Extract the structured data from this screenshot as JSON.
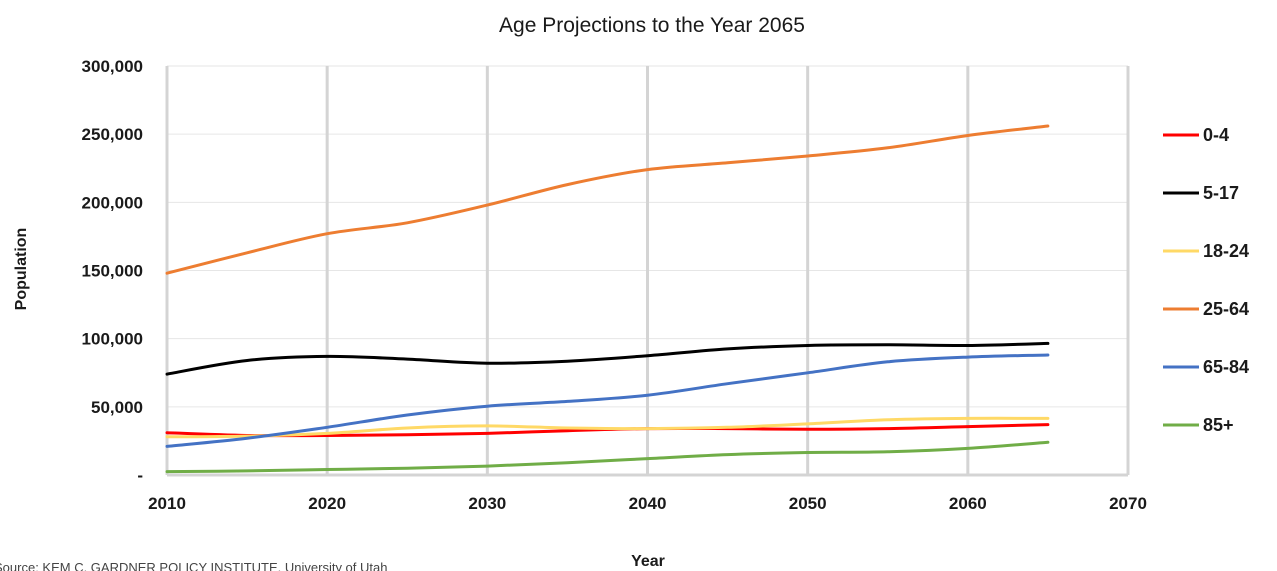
{
  "chart_data": {
    "type": "line",
    "title": "Age Projections to the Year 2065",
    "xlabel": "Year",
    "ylabel": "Population",
    "xlim": [
      2010,
      2070
    ],
    "ylim": [
      0,
      300000
    ],
    "x_ticks": [
      2010,
      2020,
      2030,
      2040,
      2050,
      2060,
      2070
    ],
    "x_tick_labels": [
      "2010",
      "2020",
      "2030",
      "2040",
      "2050",
      "2060",
      "2070"
    ],
    "y_ticks": [
      0,
      50000,
      100000,
      150000,
      200000,
      250000,
      300000
    ],
    "y_tick_labels": [
      "-",
      "50,000",
      "100,000",
      "150,000",
      "200,000",
      "250,000",
      "300,000"
    ],
    "grid": "vertical and horizontal",
    "legend_position": "right",
    "source": "Source: KEM C. GARDNER POLICY INSTITUTE, University of Utah",
    "x": [
      2010,
      2015,
      2020,
      2025,
      2030,
      2035,
      2040,
      2045,
      2050,
      2055,
      2060,
      2065
    ],
    "series": [
      {
        "name": "0-4",
        "color": "#ff0000",
        "values": [
          31000,
          29000,
          29000,
          29500,
          30500,
          32500,
          34000,
          34000,
          33500,
          34000,
          35500,
          37000
        ]
      },
      {
        "name": "5-17",
        "color": "#000000",
        "values": [
          74000,
          84000,
          87000,
          85000,
          82000,
          83500,
          87500,
          92500,
          95000,
          95500,
          95000,
          96500
        ]
      },
      {
        "name": "18-24",
        "color": "#ffd966",
        "values": [
          28000,
          28500,
          30500,
          34500,
          36000,
          34500,
          34000,
          35000,
          37500,
          40500,
          41500,
          41500
        ]
      },
      {
        "name": "25-64",
        "color": "#ed7d31",
        "values": [
          148000,
          163000,
          177000,
          185000,
          198000,
          213000,
          224000,
          229000,
          234000,
          240000,
          249000,
          256000
        ]
      },
      {
        "name": "65-84",
        "color": "#4472c4",
        "values": [
          21000,
          27000,
          35000,
          44000,
          50500,
          54000,
          58500,
          67000,
          75000,
          83000,
          86500,
          88000
        ]
      },
      {
        "name": "85+",
        "color": "#70ad47",
        "values": [
          2500,
          3000,
          4000,
          5000,
          6500,
          9000,
          12000,
          15000,
          16500,
          17000,
          19500,
          24000
        ]
      }
    ]
  }
}
